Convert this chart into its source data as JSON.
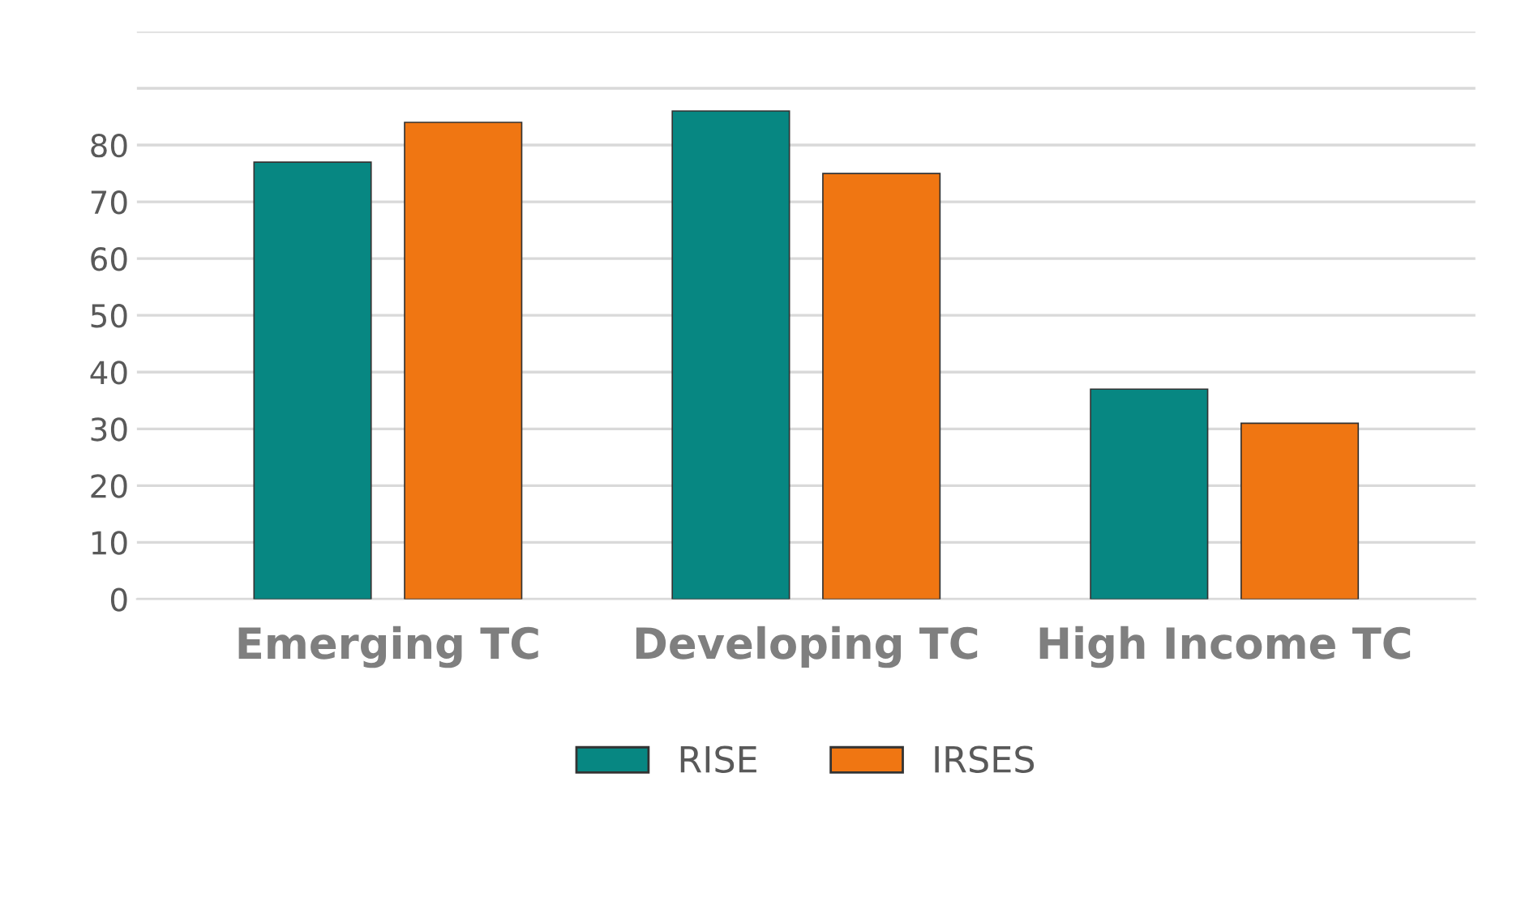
{
  "chart_data": {
    "type": "bar",
    "categories": [
      "Emerging TC",
      "Developing TC",
      "High Income TC"
    ],
    "series": [
      {
        "name": "RISE",
        "color": "#078782",
        "values": [
          77,
          86,
          37
        ]
      },
      {
        "name": "IRSES",
        "color": "#f07612",
        "values": [
          84,
          75,
          31
        ]
      }
    ],
    "ylim": [
      0,
      100
    ],
    "yticks": [
      0,
      10,
      20,
      30,
      40,
      50,
      60,
      70,
      80,
      {
        "value": 90,
        "label": null
      },
      {
        "value": 100,
        "label": null
      }
    ],
    "grid": "y",
    "legend": "bottom"
  }
}
